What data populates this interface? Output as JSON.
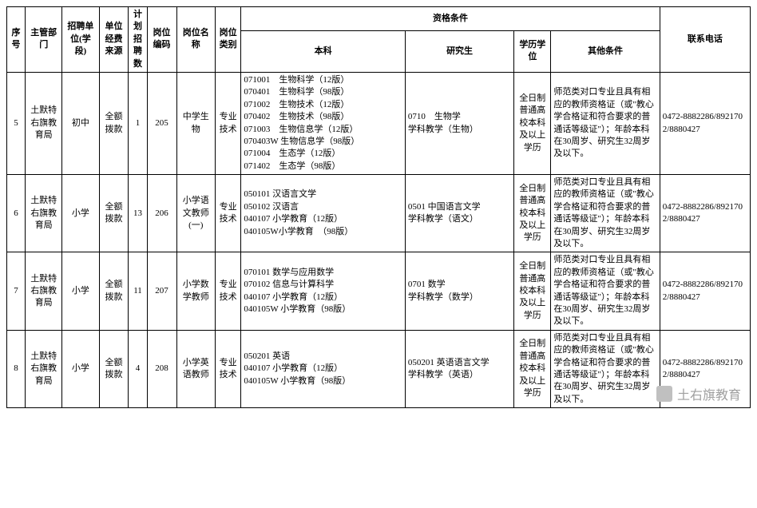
{
  "headers": {
    "seq": "序号",
    "dept": "主管部门",
    "unit": "招聘单位(学段)",
    "fund": "单位经费来源",
    "count": "计划招聘数",
    "code": "岗位编码",
    "name": "岗位名称",
    "type": "岗位类别",
    "qual_group": "资格条件",
    "undergrad": "本科",
    "grad": "研究生",
    "edu": "学历学位",
    "other": "其他条件",
    "phone": "联系电话"
  },
  "rows": [
    {
      "seq": "5",
      "dept": "土默特右旗教育局",
      "unit": "初中",
      "fund": "全额拨款",
      "count": "1",
      "code": "205",
      "name": "中学生物",
      "type": "专业技术",
      "undergrad": "071001　生物科学（12版）\n070401　生物科学（98版）\n071002　生物技术（12版）\n070402　生物技术（98版）\n071003　生物信息学（12版）\n070403W 生物信息学（98版）\n071004　生态学（12版）\n071402　生态学（98版）",
      "grad": "0710　生物学\n学科教学（生物）",
      "edu": "全日制普通高校本科及以上学历",
      "other": "师范类对口专业且具有相应的教师资格证（或\"教心学合格证和符合要求的普通话等级证\"）；年龄本科在30周岁、研究生32周岁及以下。",
      "phone": "0472-8882286/8921702/8880427"
    },
    {
      "seq": "6",
      "dept": "土默特右旗教育局",
      "unit": "小学",
      "fund": "全额拨款",
      "count": "13",
      "code": "206",
      "name": "小学语文教师(一)",
      "type": "专业技术",
      "undergrad": "050101 汉语言文学\n050102 汉语言\n040107 小学教育（12版）\n040105W小学教育　（98版）",
      "grad": "0501 中国语言文学\n学科教学（语文）",
      "edu": "全日制普通高校本科及以上学历",
      "other": "师范类对口专业且具有相应的教师资格证（或\"教心学合格证和符合要求的普通话等级证\"）；年龄本科在30周岁、研究生32周岁及以下。",
      "phone": "0472-8882286/8921702/8880427"
    },
    {
      "seq": "7",
      "dept": "土默特右旗教育局",
      "unit": "小学",
      "fund": "全额拨款",
      "count": "11",
      "code": "207",
      "name": "小学数学教师",
      "type": "专业技术",
      "undergrad": "070101 数学与应用数学\n070102 信息与计算科学\n040107 小学教育（12版）\n040105W 小学教育（98版）",
      "grad": "0701 数学\n学科教学（数学）",
      "edu": "全日制普通高校本科及以上学历",
      "other": "师范类对口专业且具有相应的教师资格证（或\"教心学合格证和符合要求的普通话等级证\"）；年龄本科在30周岁、研究生32周岁及以下。",
      "phone": "0472-8882286/8921702/8880427"
    },
    {
      "seq": "8",
      "dept": "土默特右旗教育局",
      "unit": "小学",
      "fund": "全额拨款",
      "count": "4",
      "code": "208",
      "name": "小学英语教师",
      "type": "专业技术",
      "undergrad": "050201 英语\n040107 小学教育（12版）\n040105W 小学教育（98版）",
      "grad": "050201 英语语言文学\n学科教学（英语）",
      "edu": "全日制普通高校本科及以上学历",
      "other": "师范类对口专业且具有相应的教师资格证（或\"教心学合格证和符合要求的普通话等级证\"）；年龄本科在30周岁、研究生32周岁及以下。",
      "phone": "0472-8882286/8921702/8880427"
    }
  ],
  "watermark": "土右旗教育"
}
